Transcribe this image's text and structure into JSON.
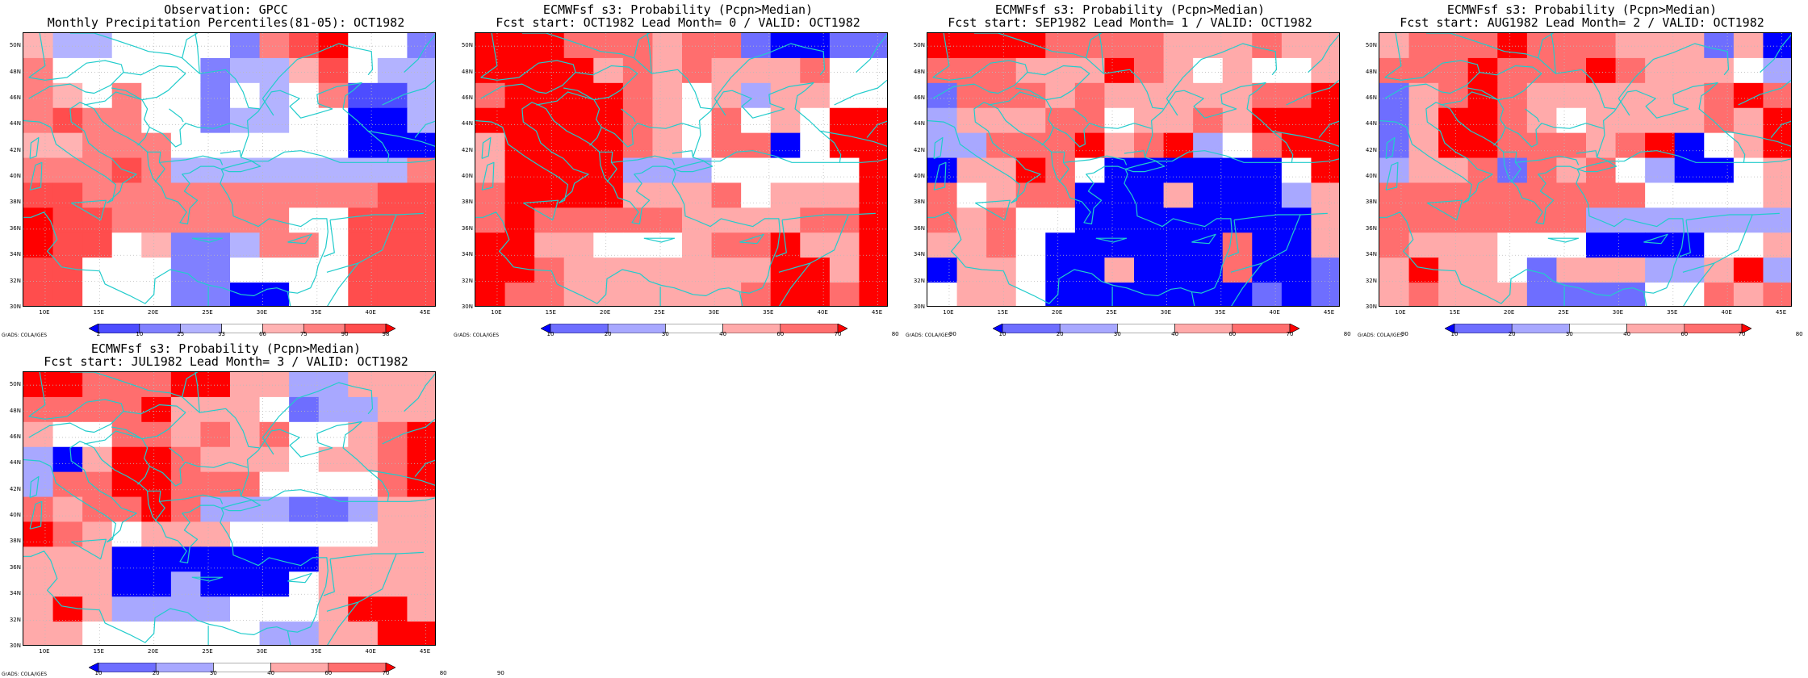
{
  "credit": "GrADS: COLA/IGES",
  "palettes": {
    "fivelevel": [
      "#0000ff",
      "#6e6eff",
      "#a8a8ff",
      "#ffffff",
      "#ffaaaa",
      "#ff6e6e",
      "#ff0000"
    ],
    "gpcc": [
      "#0000ff",
      "#4d4dff",
      "#8080ff",
      "#b3b3ff",
      "#ffffff",
      "#ffb3b3",
      "#ff8080",
      "#ff4d4d",
      "#ff0000"
    ],
    "coast_color": "#22cccc",
    "grid_color": "#bbbbbb"
  },
  "panels": [
    {
      "title1": "Observation: GPCC",
      "title2": "Monthly Precipitation Percentiles(81-05): OCT1982",
      "palette": "gpcc",
      "cbar_labels": [
        "2",
        "10",
        "25",
        "33",
        "66",
        "75",
        "90",
        "98"
      ],
      "lon_labels": [
        "10E",
        "15E",
        "20E",
        "25E",
        "30E",
        "35E",
        "40E",
        "45E"
      ],
      "lat_labels": [
        "50N",
        "48N",
        "46N",
        "44N",
        "42N",
        "40N",
        "38N",
        "36N",
        "34N",
        "32N",
        "30N"
      ],
      "grid": [
        [
          5,
          3,
          3,
          4,
          4,
          4,
          4,
          2,
          6,
          7,
          8,
          4,
          4,
          2
        ],
        [
          6,
          4,
          4,
          4,
          4,
          4,
          2,
          3,
          3,
          5,
          7,
          4,
          3,
          3
        ],
        [
          6,
          5,
          4,
          6,
          4,
          4,
          2,
          4,
          3,
          4,
          6,
          1,
          1,
          3
        ],
        [
          6,
          7,
          6,
          6,
          4,
          4,
          2,
          3,
          3,
          4,
          4,
          0,
          0,
          3
        ],
        [
          5,
          5,
          6,
          6,
          6,
          4,
          4,
          4,
          4,
          4,
          4,
          0,
          0,
          0
        ],
        [
          6,
          6,
          6,
          7,
          6,
          3,
          3,
          3,
          3,
          3,
          3,
          3,
          3,
          6
        ],
        [
          7,
          7,
          6,
          6,
          6,
          6,
          6,
          6,
          6,
          6,
          6,
          6,
          7,
          7
        ],
        [
          8,
          7,
          7,
          6,
          6,
          6,
          6,
          6,
          6,
          4,
          4,
          7,
          7,
          7
        ],
        [
          8,
          7,
          7,
          4,
          5,
          2,
          2,
          3,
          6,
          6,
          4,
          7,
          7,
          7
        ],
        [
          7,
          7,
          4,
          4,
          4,
          2,
          2,
          4,
          4,
          4,
          4,
          7,
          7,
          7
        ],
        [
          7,
          7,
          4,
          4,
          4,
          2,
          2,
          0,
          0,
          4,
          4,
          7,
          7,
          7
        ]
      ]
    },
    {
      "title1": "ECMWFsf s3: Probability (Pcpn>Median)",
      "title2": "Fcst start: OCT1982  Lead Month= 0 / VALID: OCT1982",
      "palette": "fivelevel",
      "cbar_labels": [
        "10",
        "20",
        "30",
        "40",
        "60",
        "70",
        "80",
        "90"
      ],
      "lon_labels": [
        "10E",
        "15E",
        "20E",
        "25E",
        "30E",
        "35E",
        "40E",
        "45E"
      ],
      "lat_labels": [
        "50N",
        "48N",
        "46N",
        "44N",
        "42N",
        "40N",
        "38N",
        "36N",
        "34N",
        "32N",
        "30N"
      ],
      "grid": [
        [
          6,
          6,
          6,
          5,
          5,
          5,
          4,
          5,
          5,
          1,
          0,
          0,
          1,
          1
        ],
        [
          6,
          6,
          6,
          6,
          4,
          5,
          4,
          5,
          4,
          4,
          4,
          5,
          3,
          3
        ],
        [
          5,
          6,
          6,
          6,
          6,
          5,
          4,
          3,
          4,
          2,
          4,
          4,
          3,
          3
        ],
        [
          6,
          6,
          6,
          6,
          6,
          5,
          4,
          3,
          5,
          3,
          4,
          3,
          6,
          6
        ],
        [
          4,
          6,
          6,
          6,
          6,
          5,
          4,
          3,
          5,
          5,
          0,
          3,
          6,
          6
        ],
        [
          4,
          6,
          6,
          6,
          6,
          2,
          2,
          2,
          3,
          3,
          3,
          3,
          3,
          6
        ],
        [
          5,
          6,
          6,
          6,
          6,
          4,
          4,
          4,
          5,
          3,
          4,
          4,
          4,
          6
        ],
        [
          5,
          6,
          5,
          5,
          5,
          5,
          5,
          4,
          4,
          4,
          4,
          5,
          5,
          6
        ],
        [
          6,
          6,
          4,
          4,
          3,
          3,
          3,
          4,
          5,
          5,
          6,
          4,
          4,
          6
        ],
        [
          6,
          6,
          5,
          4,
          4,
          4,
          4,
          4,
          4,
          4,
          6,
          6,
          4,
          6
        ],
        [
          6,
          5,
          5,
          4,
          4,
          4,
          4,
          4,
          4,
          5,
          6,
          6,
          5,
          6
        ]
      ]
    },
    {
      "title1": "ECMWFsf s3: Probability (Pcpn>Median)",
      "title2": "Fcst start: SEP1982  Lead Month= 1 / VALID: OCT1982",
      "palette": "fivelevel",
      "cbar_labels": [
        "10",
        "20",
        "30",
        "40",
        "60",
        "70",
        "80",
        "90"
      ],
      "lon_labels": [
        "10E",
        "15E",
        "20E",
        "25E",
        "30E",
        "35E",
        "40E",
        "45E"
      ],
      "lat_labels": [
        "50N",
        "48N",
        "46N",
        "44N",
        "42N",
        "40N",
        "38N",
        "36N",
        "34N",
        "32N",
        "30N"
      ],
      "grid": [
        [
          6,
          6,
          6,
          6,
          5,
          5,
          5,
          5,
          4,
          4,
          4,
          5,
          4,
          4
        ],
        [
          5,
          5,
          5,
          4,
          4,
          4,
          6,
          5,
          4,
          3,
          4,
          3,
          3,
          4
        ],
        [
          1,
          5,
          5,
          5,
          4,
          5,
          4,
          4,
          4,
          4,
          4,
          5,
          5,
          6
        ],
        [
          2,
          4,
          4,
          4,
          5,
          5,
          3,
          4,
          4,
          5,
          4,
          6,
          6,
          6
        ],
        [
          2,
          2,
          5,
          5,
          5,
          6,
          4,
          5,
          6,
          2,
          3,
          5,
          6,
          6
        ],
        [
          0,
          4,
          4,
          6,
          5,
          3,
          0,
          0,
          0,
          0,
          0,
          0,
          3,
          6
        ],
        [
          5,
          3,
          4,
          5,
          5,
          0,
          0,
          0,
          4,
          0,
          0,
          0,
          2,
          4
        ],
        [
          5,
          4,
          5,
          3,
          3,
          0,
          0,
          0,
          0,
          0,
          0,
          0,
          0,
          4
        ],
        [
          4,
          4,
          5,
          3,
          0,
          0,
          0,
          0,
          0,
          0,
          5,
          0,
          0,
          4
        ],
        [
          0,
          4,
          4,
          3,
          0,
          0,
          4,
          0,
          0,
          0,
          5,
          0,
          0,
          1
        ],
        [
          3,
          4,
          4,
          3,
          0,
          0,
          0,
          0,
          0,
          0,
          0,
          1,
          0,
          1
        ]
      ]
    },
    {
      "title1": "ECMWFsf s3: Probability (Pcpn>Median)",
      "title2": "Fcst start: AUG1982  Lead Month= 2 / VALID: OCT1982",
      "palette": "fivelevel",
      "cbar_labels": [
        "10",
        "20",
        "30",
        "40",
        "60",
        "70",
        "80",
        "90"
      ],
      "lon_labels": [
        "10E",
        "15E",
        "20E",
        "25E",
        "30E",
        "35E",
        "40E",
        "45E"
      ],
      "lat_labels": [
        "50N",
        "48N",
        "46N",
        "44N",
        "42N",
        "40N",
        "38N",
        "36N",
        "34N",
        "32N",
        "30N"
      ],
      "grid": [
        [
          4,
          5,
          5,
          5,
          6,
          5,
          5,
          5,
          4,
          4,
          4,
          1,
          4,
          0
        ],
        [
          5,
          5,
          5,
          6,
          5,
          5,
          5,
          6,
          5,
          4,
          4,
          4,
          3,
          2
        ],
        [
          1,
          4,
          5,
          6,
          5,
          4,
          4,
          4,
          4,
          4,
          4,
          5,
          6,
          5
        ],
        [
          1,
          4,
          6,
          6,
          5,
          4,
          3,
          4,
          4,
          4,
          4,
          5,
          4,
          6
        ],
        [
          1,
          4,
          6,
          6,
          5,
          5,
          5,
          4,
          5,
          6,
          0,
          3,
          4,
          6
        ],
        [
          2,
          4,
          4,
          5,
          1,
          5,
          4,
          5,
          3,
          2,
          0,
          0,
          3,
          4
        ],
        [
          5,
          5,
          5,
          5,
          5,
          5,
          5,
          5,
          5,
          3,
          3,
          3,
          3,
          4
        ],
        [
          5,
          5,
          5,
          5,
          5,
          5,
          5,
          2,
          2,
          2,
          2,
          2,
          2,
          2
        ],
        [
          5,
          4,
          4,
          4,
          3,
          3,
          3,
          0,
          0,
          0,
          0,
          3,
          3,
          4
        ],
        [
          4,
          6,
          4,
          4,
          3,
          1,
          4,
          4,
          4,
          2,
          2,
          4,
          6,
          2
        ],
        [
          4,
          5,
          4,
          4,
          4,
          1,
          1,
          1,
          1,
          3,
          3,
          5,
          4,
          5
        ]
      ]
    },
    {
      "title1": "ECMWFsf s3: Probability (Pcpn>Median)",
      "title2": "Fcst start: JUL1982  Lead Month= 3 / VALID: OCT1982",
      "palette": "fivelevel",
      "cbar_labels": [
        "10",
        "20",
        "30",
        "40",
        "60",
        "70",
        "80",
        "90"
      ],
      "lon_labels": [
        "10E",
        "15E",
        "20E",
        "25E",
        "30E",
        "35E",
        "40E",
        "45E"
      ],
      "lat_labels": [
        "50N",
        "48N",
        "46N",
        "44N",
        "42N",
        "40N",
        "38N",
        "36N",
        "34N",
        "32N",
        "30N"
      ],
      "grid": [
        [
          6,
          6,
          5,
          5,
          5,
          6,
          6,
          4,
          4,
          2,
          2,
          4,
          4,
          4
        ],
        [
          5,
          5,
          5,
          5,
          6,
          4,
          4,
          4,
          3,
          1,
          2,
          2,
          4,
          4
        ],
        [
          4,
          3,
          3,
          5,
          5,
          4,
          5,
          4,
          5,
          3,
          3,
          4,
          5,
          6
        ],
        [
          2,
          0,
          4,
          6,
          6,
          5,
          4,
          4,
          4,
          3,
          4,
          4,
          5,
          6
        ],
        [
          2,
          5,
          5,
          6,
          6,
          5,
          5,
          5,
          3,
          3,
          3,
          3,
          5,
          6
        ],
        [
          5,
          4,
          5,
          5,
          6,
          5,
          2,
          2,
          2,
          1,
          1,
          2,
          4,
          4
        ],
        [
          6,
          5,
          4,
          3,
          4,
          4,
          4,
          3,
          3,
          3,
          3,
          3,
          4,
          4
        ],
        [
          4,
          4,
          4,
          0,
          0,
          0,
          0,
          0,
          0,
          0,
          4,
          4,
          4,
          4
        ],
        [
          4,
          4,
          4,
          0,
          0,
          2,
          0,
          0,
          0,
          3,
          4,
          4,
          4,
          4
        ],
        [
          4,
          6,
          4,
          2,
          2,
          2,
          2,
          3,
          3,
          3,
          4,
          6,
          6,
          4
        ],
        [
          4,
          4,
          3,
          3,
          3,
          3,
          3,
          3,
          2,
          2,
          4,
          4,
          6,
          6
        ]
      ]
    }
  ]
}
